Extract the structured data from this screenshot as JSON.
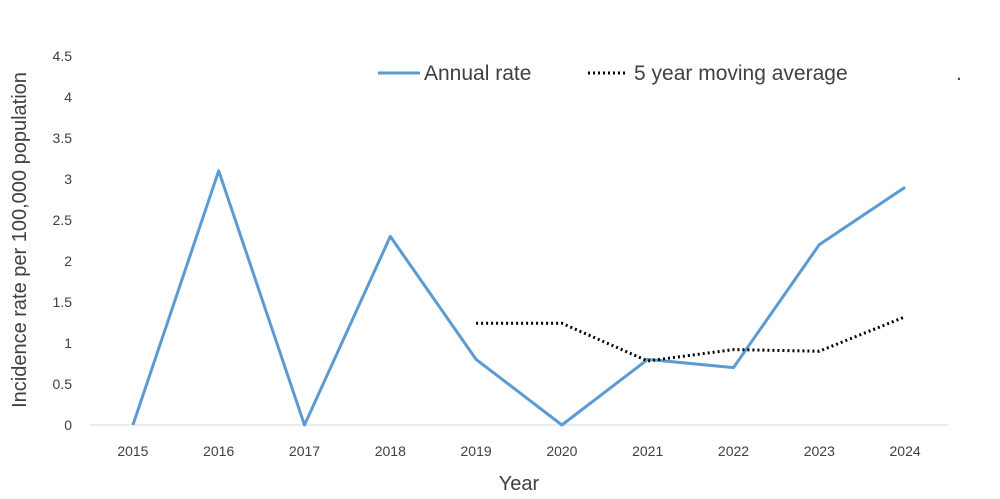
{
  "chart_data": {
    "type": "line",
    "title": "",
    "xlabel": "Year",
    "ylabel": "Incidence rate per 100,000 population",
    "categories": [
      "2015",
      "2016",
      "2017",
      "2018",
      "2019",
      "2020",
      "2021",
      "2022",
      "2023",
      "2024"
    ],
    "yticks": [
      "0",
      "0.5",
      "1",
      "1.5",
      "2",
      "2.5",
      "3",
      "3.5",
      "4",
      "4.5"
    ],
    "ylim": [
      0,
      4.5
    ],
    "grid": false,
    "legend_position": "top",
    "legend_extra": ".",
    "series": [
      {
        "name": "Annual rate",
        "color": "#5b9bd5",
        "style": "solid",
        "values": [
          0,
          3.1,
          0,
          2.3,
          0.8,
          0,
          0.8,
          0.7,
          2.2,
          2.9
        ]
      },
      {
        "name": "5 year moving average",
        "color": "#000000",
        "style": "dotted",
        "values": [
          null,
          null,
          null,
          null,
          1.24,
          1.24,
          0.78,
          0.92,
          0.9,
          1.32
        ]
      }
    ]
  }
}
